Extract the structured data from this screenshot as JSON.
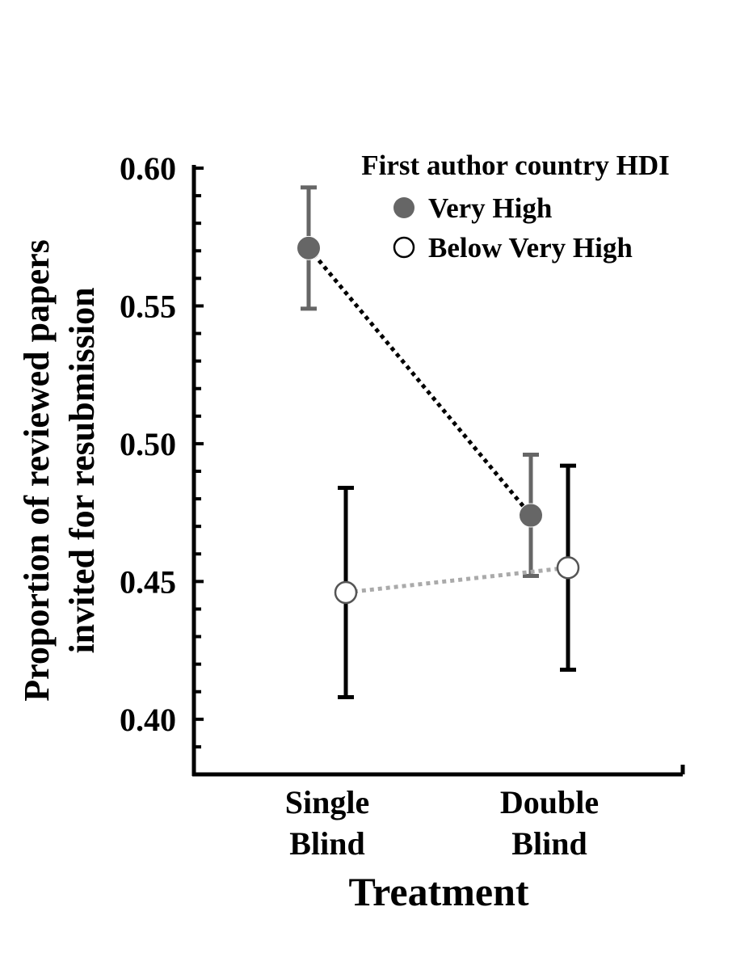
{
  "chart_data": {
    "type": "line",
    "title": "",
    "xlabel": "Treatment",
    "ylabel": "Proportion of reviewed papers invited for resubmission",
    "ylabel_lines": [
      "Proportion of reviewed papers",
      "invited for resubmission"
    ],
    "categories": [
      {
        "lines": [
          "Single",
          "Blind"
        ]
      },
      {
        "lines": [
          "Double",
          "Blind"
        ]
      }
    ],
    "ylim": [
      0.38,
      0.6
    ],
    "yticks": [
      {
        "value": 0.4,
        "label": "0.40"
      },
      {
        "value": 0.45,
        "label": "0.45"
      },
      {
        "value": 0.5,
        "label": "0.50"
      },
      {
        "value": 0.55,
        "label": "0.55"
      },
      {
        "value": 0.6,
        "label": "0.60"
      }
    ],
    "grid": false,
    "legend": {
      "title": "First author country HDI",
      "placement": "top-right"
    },
    "series": [
      {
        "name": "Very High",
        "marker": "filled-circle",
        "color": "#666666",
        "line_color": "#000000",
        "line_style": "dotted",
        "values": [
          0.571,
          0.474
        ],
        "error_low": [
          0.549,
          0.452
        ],
        "error_high": [
          0.593,
          0.496
        ]
      },
      {
        "name": "Below Very High",
        "marker": "open-circle",
        "color": "#000000",
        "line_color": "#aaaaaa",
        "line_style": "dotted",
        "values": [
          0.446,
          0.455
        ],
        "error_low": [
          0.408,
          0.418
        ],
        "error_high": [
          0.484,
          0.492
        ]
      }
    ]
  }
}
